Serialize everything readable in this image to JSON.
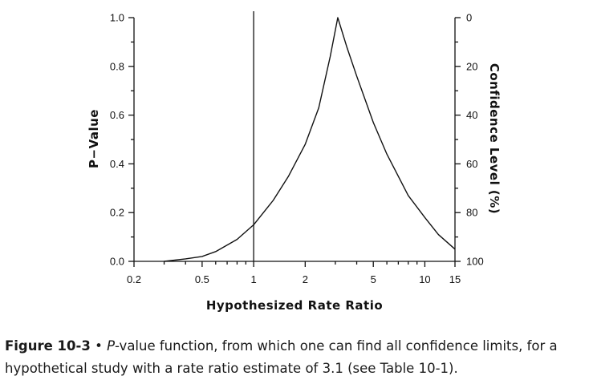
{
  "chart_data": {
    "type": "line",
    "xlabel": "Hypothesized Rate Ratio",
    "ylabel": "P−Value",
    "y2label": "Confidence Level (%)",
    "x_scale": "log",
    "xlim": [
      0.2,
      15
    ],
    "ylim": [
      0,
      1
    ],
    "x_ticks": [
      {
        "value": 0.2,
        "label": "0.2"
      },
      {
        "value": 0.5,
        "label": "0.5"
      },
      {
        "value": 1,
        "label": "1"
      },
      {
        "value": 2,
        "label": "2"
      },
      {
        "value": 5,
        "label": "5"
      },
      {
        "value": 10,
        "label": "10"
      },
      {
        "value": 15,
        "label": "15"
      }
    ],
    "y_ticks": [
      {
        "value": 0.0,
        "label": "0.0"
      },
      {
        "value": 0.2,
        "label": "0.2"
      },
      {
        "value": 0.4,
        "label": "0.4"
      },
      {
        "value": 0.6,
        "label": "0.6"
      },
      {
        "value": 0.8,
        "label": "0.8"
      },
      {
        "value": 1.0,
        "label": "1.0"
      }
    ],
    "y2_ticks": [
      {
        "value": 0,
        "label": "0"
      },
      {
        "value": 20,
        "label": "20"
      },
      {
        "value": 40,
        "label": "40"
      },
      {
        "value": 60,
        "label": "60"
      },
      {
        "value": 80,
        "label": "80"
      },
      {
        "value": 100,
        "label": "100"
      }
    ],
    "estimate": 3.1,
    "reference_line_x": 1,
    "series": [
      {
        "x": [
          0.3,
          0.4,
          0.5,
          0.6,
          0.8,
          1.0,
          1.3,
          1.6,
          2.0,
          2.4,
          2.8,
          3.1,
          3.5,
          4.0,
          5.0,
          6.0,
          8.0,
          10.0,
          12.0,
          15.0
        ],
        "y": [
          0.0,
          0.01,
          0.02,
          0.04,
          0.09,
          0.15,
          0.25,
          0.35,
          0.48,
          0.63,
          0.84,
          1.0,
          0.88,
          0.76,
          0.57,
          0.44,
          0.27,
          0.18,
          0.11,
          0.05
        ]
      }
    ]
  },
  "caption": {
    "figure_label": "Figure 10-3",
    "bullet": " • ",
    "italic_lead": "P",
    "text": "-value function, from which one can find all confidence limits, for a hypothetical study with a rate ratio estimate of 3.1 (see Table 10-1)."
  }
}
